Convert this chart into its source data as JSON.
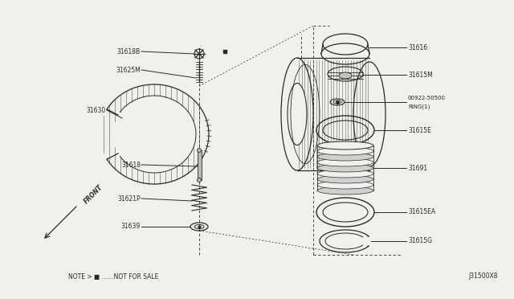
{
  "bg_color": "#f0f0ec",
  "line_color": "#2a2a2a",
  "note_text": "NOTE > ■ ……NOT FOR SALE",
  "diagram_id": "J31500X8",
  "figsize": [
    6.4,
    3.72
  ],
  "dpi": 100,
  "xlim": [
    0,
    640
  ],
  "ylim": [
    0,
    372
  ]
}
